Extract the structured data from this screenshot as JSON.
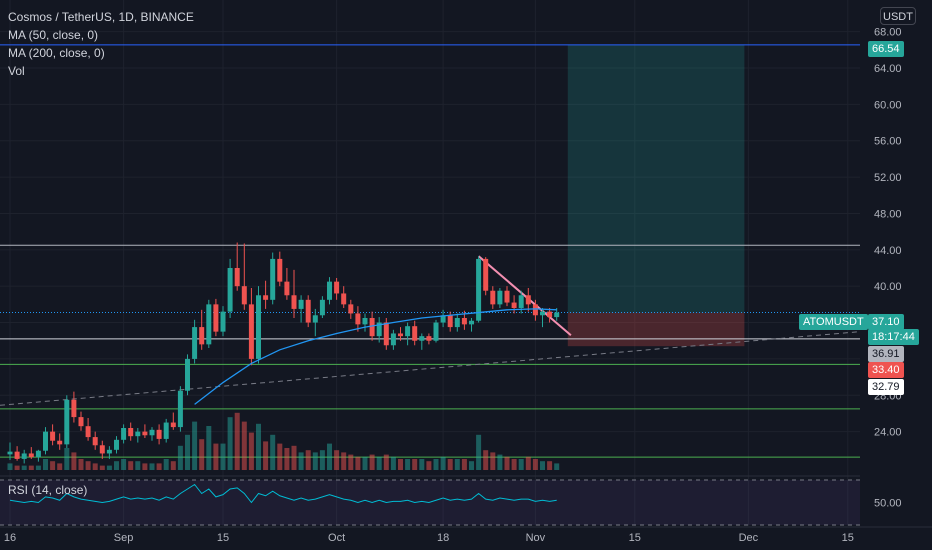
{
  "legend": {
    "title": "Cosmos / TetherUS, 1D, BINANCE",
    "ma50": "MA (50, close, 0)",
    "ma200": "MA (200, close, 0)",
    "vol": "Vol",
    "rsi": "RSI (14, close)"
  },
  "currency_button": "USDT",
  "symbol_tag": "ATOMUSDT",
  "price_tags": {
    "target": "66.54",
    "current": "37.10",
    "countdown": "18:17:44",
    "level1": "36.91",
    "stop": "33.40",
    "level2": "32.79"
  },
  "colors": {
    "background": "#131722",
    "up": "#26a69a",
    "down": "#ef5350",
    "ma": "#2196f3",
    "blue_line": "#2962ff",
    "green_line": "#4caf50",
    "rsi": "#00bcd4"
  },
  "chart_data": {
    "type": "candlestick",
    "title": "Cosmos / TetherUS, 1D, BINANCE",
    "y_ticks": [
      "68.00",
      "64.00",
      "60.00",
      "56.00",
      "52.00",
      "48.00",
      "44.00",
      "40.00",
      "36.00",
      "32.00",
      "28.00",
      "24.00"
    ],
    "y_range": [
      20,
      69.5
    ],
    "rsi_tick": "50.00",
    "x_ticks": [
      {
        "label": "16",
        "i": 0
      },
      {
        "label": "Sep",
        "i": 16
      },
      {
        "label": "15",
        "i": 30
      },
      {
        "label": "Oct",
        "i": 46
      },
      {
        "label": "18",
        "i": 61
      },
      {
        "label": "Nov",
        "i": 74
      },
      {
        "label": "15",
        "i": 88
      },
      {
        "label": "Dec",
        "i": 104
      },
      {
        "label": "15",
        "i": 118
      }
    ],
    "candles": [
      [
        21.5,
        22.8,
        20.9,
        21.8
      ],
      [
        21.8,
        22.4,
        20.8,
        21.0
      ],
      [
        21.0,
        22.0,
        20.5,
        21.6
      ],
      [
        21.6,
        22.3,
        21.0,
        21.2
      ],
      [
        21.2,
        22.0,
        20.7,
        21.9
      ],
      [
        21.9,
        24.5,
        21.5,
        24.0
      ],
      [
        24.0,
        24.8,
        22.5,
        23.0
      ],
      [
        23.0,
        23.8,
        22.0,
        22.6
      ],
      [
        22.6,
        28.0,
        22.2,
        27.5
      ],
      [
        27.5,
        28.4,
        25.0,
        25.6
      ],
      [
        25.6,
        26.2,
        24.1,
        24.6
      ],
      [
        24.6,
        25.5,
        23.0,
        23.4
      ],
      [
        23.4,
        24.0,
        22.0,
        22.5
      ],
      [
        22.5,
        23.0,
        21.0,
        21.6
      ],
      [
        21.6,
        22.4,
        21.0,
        22.0
      ],
      [
        22.0,
        23.5,
        21.6,
        23.1
      ],
      [
        23.1,
        24.8,
        22.7,
        24.4
      ],
      [
        24.4,
        25.0,
        23.0,
        23.5
      ],
      [
        23.5,
        24.4,
        22.8,
        24.0
      ],
      [
        24.0,
        24.8,
        23.3,
        23.6
      ],
      [
        23.6,
        24.5,
        23.0,
        24.2
      ],
      [
        24.2,
        24.8,
        22.6,
        23.2
      ],
      [
        23.2,
        25.4,
        22.8,
        25.0
      ],
      [
        25.0,
        26.1,
        24.2,
        24.5
      ],
      [
        24.5,
        29.0,
        24.0,
        28.5
      ],
      [
        28.5,
        32.5,
        28.0,
        32.0
      ],
      [
        32.0,
        36.3,
        31.5,
        35.5
      ],
      [
        35.5,
        37.4,
        33.0,
        33.6
      ],
      [
        33.6,
        38.5,
        33.2,
        38.0
      ],
      [
        38.0,
        38.6,
        34.5,
        35.0
      ],
      [
        35.0,
        37.8,
        34.5,
        37.2
      ],
      [
        37.2,
        43.0,
        36.5,
        42.0
      ],
      [
        42.0,
        44.8,
        39.5,
        40.0
      ],
      [
        40.0,
        44.7,
        37.4,
        38.0
      ],
      [
        38.0,
        39.8,
        31.3,
        32.0
      ],
      [
        32.0,
        40.0,
        31.5,
        39.0
      ],
      [
        39.0,
        40.6,
        37.5,
        38.5
      ],
      [
        38.5,
        43.7,
        38.0,
        43.0
      ],
      [
        43.0,
        43.8,
        40.0,
        40.5
      ],
      [
        40.5,
        42.0,
        38.5,
        39.0
      ],
      [
        39.0,
        41.8,
        36.5,
        37.5
      ],
      [
        37.5,
        39.0,
        36.0,
        38.5
      ],
      [
        38.5,
        39.0,
        35.5,
        36.0
      ],
      [
        36.0,
        37.5,
        34.5,
        36.8
      ],
      [
        36.8,
        38.9,
        36.5,
        38.5
      ],
      [
        38.5,
        41.0,
        38.0,
        40.5
      ],
      [
        40.5,
        40.9,
        38.5,
        39.2
      ],
      [
        39.2,
        40.0,
        37.6,
        38.0
      ],
      [
        38.0,
        38.5,
        36.4,
        37.0
      ],
      [
        37.0,
        37.8,
        35.0,
        35.8
      ],
      [
        35.8,
        37.0,
        35.0,
        36.5
      ],
      [
        36.5,
        37.2,
        34.0,
        34.5
      ],
      [
        34.5,
        36.6,
        33.8,
        36.0
      ],
      [
        36.0,
        36.5,
        33.0,
        33.5
      ],
      [
        33.5,
        35.2,
        33.0,
        34.8
      ],
      [
        34.8,
        35.5,
        34.0,
        34.5
      ],
      [
        34.5,
        36.0,
        33.5,
        35.6
      ],
      [
        35.6,
        36.2,
        33.5,
        34.0
      ],
      [
        34.0,
        34.8,
        33.0,
        34.5
      ],
      [
        34.5,
        34.8,
        33.6,
        34.0
      ],
      [
        34.0,
        36.3,
        33.8,
        36.0
      ],
      [
        36.0,
        37.4,
        35.5,
        36.8
      ],
      [
        36.8,
        37.2,
        35.0,
        35.5
      ],
      [
        35.5,
        37.0,
        35.0,
        36.5
      ],
      [
        36.5,
        37.3,
        35.2,
        35.8
      ],
      [
        35.8,
        36.5,
        35.0,
        36.2
      ],
      [
        36.2,
        43.3,
        36.0,
        43.0
      ],
      [
        43.0,
        43.2,
        39.0,
        39.5
      ],
      [
        39.5,
        40.0,
        37.5,
        38.0
      ],
      [
        38.0,
        39.8,
        37.6,
        39.5
      ],
      [
        39.5,
        40.0,
        37.8,
        38.2
      ],
      [
        38.2,
        39.0,
        37.0,
        37.6
      ],
      [
        37.6,
        39.5,
        37.0,
        39.0
      ],
      [
        39.0,
        39.8,
        37.2,
        38.0
      ],
      [
        38.0,
        38.5,
        36.2,
        36.8
      ],
      [
        36.8,
        37.6,
        35.5,
        37.2
      ],
      [
        37.2,
        37.6,
        36.0,
        36.6
      ],
      [
        36.6,
        37.6,
        36.2,
        37.1
      ]
    ],
    "volumes": [
      3,
      2,
      2,
      2,
      2,
      5,
      4,
      3,
      10,
      8,
      5,
      4,
      3,
      2,
      2,
      4,
      5,
      4,
      4,
      3,
      3,
      3,
      5,
      4,
      11,
      16,
      22,
      14,
      20,
      12,
      12,
      24,
      26,
      22,
      17,
      21,
      13,
      16,
      12,
      10,
      11,
      8,
      9,
      8,
      9,
      12,
      9,
      8,
      7,
      6,
      6,
      7,
      6,
      7,
      6,
      5,
      5,
      5,
      5,
      4,
      5,
      6,
      5,
      5,
      5,
      4,
      16,
      9,
      8,
      7,
      6,
      5,
      5,
      6,
      5,
      4,
      4,
      3
    ],
    "ma50": [
      [
        26,
        27.0
      ],
      [
        30,
        29.4
      ],
      [
        34,
        31.5
      ],
      [
        38,
        33.0
      ],
      [
        42,
        34.0
      ],
      [
        46,
        34.8
      ],
      [
        50,
        35.5
      ],
      [
        54,
        36.0
      ],
      [
        58,
        36.5
      ],
      [
        62,
        36.8
      ],
      [
        66,
        37.1
      ],
      [
        70,
        37.4
      ],
      [
        74,
        37.5
      ],
      [
        77,
        37.4
      ]
    ],
    "rsi": [
      52,
      51,
      50,
      51,
      50,
      55,
      54,
      52,
      58,
      55,
      53,
      52,
      51,
      50,
      51,
      53,
      55,
      53,
      54,
      53,
      54,
      52,
      55,
      53,
      58,
      62,
      66,
      58,
      62,
      55,
      57,
      62,
      63,
      58,
      50,
      58,
      56,
      60,
      56,
      54,
      52,
      54,
      52,
      53,
      55,
      57,
      55,
      53,
      52,
      50,
      52,
      50,
      52,
      50,
      51,
      51,
      52,
      50,
      51,
      50,
      52,
      54,
      52,
      53,
      52,
      53,
      58,
      53,
      52,
      54,
      53,
      52,
      53,
      53,
      51,
      52,
      51,
      52
    ]
  }
}
